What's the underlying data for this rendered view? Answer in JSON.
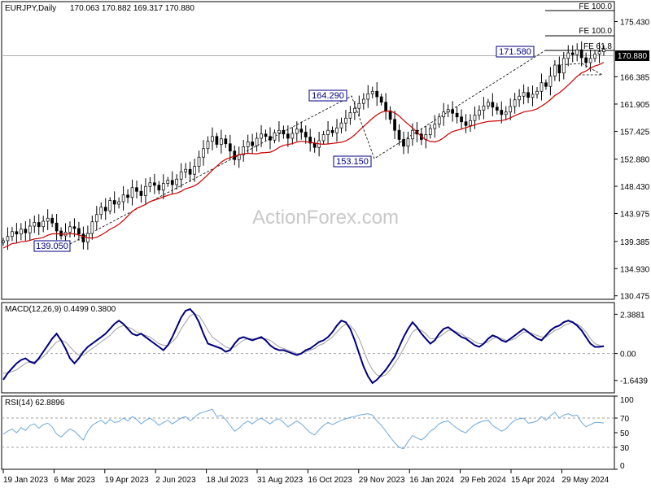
{
  "header": {
    "symbol": "EURJPY,Daily",
    "ohlc": "170.063 170.882 169.317 170.880"
  },
  "watermark": "ActionForex.com",
  "current_price_label": "170.880",
  "annotations": {
    "low_1": "139.050",
    "high_1": "164.290",
    "low_2": "153.150",
    "high_2": "171.580",
    "fe_top": "FE 100.0",
    "fe_mid": "FE 100.0",
    "fe_618": "FE 61.8"
  },
  "colors": {
    "candle": "#000000",
    "sma": "#cc0000",
    "macd": "#000080",
    "signal": "#a0a0a0",
    "rsi": "#6fa8dc",
    "projection": "#000000",
    "price_tag_bg": "#000000"
  },
  "chart_data": [
    {
      "type": "candlestick",
      "name": "price",
      "y_ticks": [
        "175.430",
        "170.880",
        "166.385",
        "161.905",
        "157.425",
        "152.880",
        "148.430",
        "143.975",
        "139.385",
        "134.930",
        "130.475"
      ],
      "ylim": [
        129.9,
        178.7
      ],
      "x_ticks": [
        "19 Jan 2023",
        "6 Mar 2023",
        "19 Apr 2023",
        "2 Jun 2023",
        "18 Jul 2023",
        "31 Aug 2023",
        "16 Oct 2023",
        "29 Nov 2023",
        "16 Jan 2024",
        "29 Feb 2024",
        "15 Apr 2024",
        "29 May 2024"
      ],
      "close": [
        139.5,
        140.2,
        141.0,
        140.6,
        141.4,
        140.8,
        141.9,
        142.5,
        141.8,
        142.7,
        143.2,
        142.4,
        141.1,
        140.3,
        140.9,
        141.8,
        141.5,
        140.6,
        139.3,
        140.7,
        142.6,
        143.8,
        145.0,
        144.4,
        146.1,
        145.5,
        145.9,
        147.0,
        146.6,
        148.2,
        147.6,
        146.9,
        148.4,
        149.0,
        148.6,
        147.8,
        148.9,
        149.4,
        148.7,
        149.6,
        150.8,
        151.2,
        150.4,
        151.7,
        153.2,
        154.6,
        155.8,
        156.6,
        155.3,
        156.2,
        155.4,
        154.2,
        152.8,
        153.6,
        154.9,
        155.7,
        155.1,
        156.3,
        157.0,
        156.6,
        156.0,
        157.2,
        157.6,
        157.0,
        156.3,
        157.1,
        157.8,
        157.3,
        156.5,
        155.5,
        154.8,
        155.9,
        156.9,
        157.6,
        157.2,
        158.0,
        158.8,
        159.6,
        160.5,
        161.2,
        162.0,
        162.7,
        163.6,
        164.0,
        163.1,
        162.2,
        160.8,
        159.4,
        157.6,
        156.1,
        155.0,
        156.2,
        157.6,
        157.0,
        156.1,
        156.9,
        157.9,
        158.6,
        159.8,
        160.6,
        161.0,
        160.4,
        159.8,
        159.0,
        158.4,
        159.2,
        160.1,
        160.9,
        161.6,
        162.2,
        161.4,
        160.9,
        160.2,
        160.6,
        161.5,
        162.6,
        163.2,
        163.8,
        163.0,
        163.5,
        164.0,
        165.4,
        164.8,
        166.5,
        168.3,
        167.0,
        169.4,
        170.3,
        170.0,
        170.8,
        169.5,
        168.7,
        169.4,
        170.1,
        170.5,
        170.88
      ]
    },
    {
      "type": "line",
      "name": "MACD(12,26,9) 0.4499 0.3800",
      "y_ticks": [
        "2.3881",
        "0.00",
        "-1.6439"
      ],
      "ylim": [
        -2.4,
        3.1
      ],
      "series": [
        {
          "values": [
            -1.6,
            -1.2,
            -0.9,
            -0.6,
            -0.4,
            -0.3,
            -0.5,
            -0.6,
            -0.3,
            0.1,
            0.5,
            0.9,
            1.2,
            0.8,
            0.3,
            -0.3,
            -0.6,
            -0.3,
            0.1,
            0.4,
            0.6,
            0.8,
            1.0,
            1.2,
            1.5,
            1.8,
            2.0,
            1.8,
            1.5,
            1.2,
            1.1,
            1.2,
            1.0,
            0.8,
            0.6,
            0.4,
            0.2,
            0.5,
            1.0,
            1.6,
            2.2,
            2.6,
            2.7,
            2.4,
            1.9,
            1.2,
            0.6,
            0.5,
            0.4,
            0.3,
            0.1,
            0.2,
            0.6,
            0.9,
            1.0,
            0.9,
            0.8,
            0.9,
            1.0,
            0.8,
            0.5,
            0.3,
            0.2,
            0.2,
            0.1,
            0.0,
            -0.1,
            0.0,
            0.2,
            0.3,
            0.5,
            0.7,
            0.8,
            1.0,
            1.3,
            1.7,
            2.0,
            1.9,
            1.5,
            0.8,
            0.0,
            -0.8,
            -1.4,
            -1.8,
            -1.6,
            -1.3,
            -1.0,
            -0.6,
            -0.2,
            0.4,
            1.0,
            1.5,
            1.9,
            1.6,
            1.2,
            0.9,
            0.6,
            0.8,
            1.2,
            1.5,
            1.6,
            1.4,
            1.2,
            1.0,
            0.9,
            0.7,
            0.5,
            0.4,
            0.6,
            0.9,
            1.1,
            1.0,
            0.8,
            0.7,
            0.9,
            1.1,
            1.3,
            1.5,
            1.3,
            1.1,
            0.9,
            0.8,
            1.1,
            1.4,
            1.6,
            1.7,
            1.9,
            2.0,
            1.9,
            1.7,
            1.4,
            1.0,
            0.6,
            0.4,
            0.4,
            0.45
          ]
        },
        {
          "values": [
            -1.2,
            -1.2,
            -1.1,
            -1.0,
            -0.8,
            -0.6,
            -0.5,
            -0.5,
            -0.4,
            -0.2,
            0.1,
            0.4,
            0.7,
            0.8,
            0.7,
            0.4,
            0.1,
            -0.1,
            -0.1,
            0.1,
            0.3,
            0.5,
            0.7,
            0.9,
            1.1,
            1.4,
            1.6,
            1.7,
            1.6,
            1.5,
            1.3,
            1.2,
            1.1,
            1.0,
            0.8,
            0.6,
            0.5,
            0.5,
            0.7,
            1.0,
            1.5,
            1.9,
            2.3,
            2.4,
            2.3,
            1.9,
            1.4,
            1.0,
            0.8,
            0.6,
            0.4,
            0.3,
            0.4,
            0.6,
            0.8,
            0.9,
            0.9,
            0.9,
            0.9,
            0.9,
            0.8,
            0.6,
            0.4,
            0.3,
            0.2,
            0.1,
            0.0,
            0.0,
            0.1,
            0.2,
            0.3,
            0.5,
            0.6,
            0.8,
            1.0,
            1.3,
            1.6,
            1.8,
            1.7,
            1.4,
            0.9,
            0.2,
            -0.5,
            -1.0,
            -1.3,
            -1.4,
            -1.3,
            -1.0,
            -0.6,
            -0.2,
            0.3,
            0.8,
            1.3,
            1.5,
            1.4,
            1.2,
            0.9,
            0.9,
            1.0,
            1.2,
            1.4,
            1.4,
            1.3,
            1.2,
            1.0,
            0.9,
            0.7,
            0.6,
            0.6,
            0.7,
            0.9,
            1.0,
            0.9,
            0.8,
            0.8,
            0.9,
            1.1,
            1.3,
            1.3,
            1.2,
            1.1,
            1.0,
            1.0,
            1.2,
            1.4,
            1.5,
            1.7,
            1.8,
            1.9,
            1.8,
            1.6,
            1.3,
            0.9,
            0.6,
            0.5,
            0.38
          ]
        }
      ]
    },
    {
      "type": "line",
      "name": "RSI(14) 62.8896",
      "y_ticks": [
        "100",
        "70",
        "50",
        "30",
        "0"
      ],
      "ylim": [
        0,
        100
      ],
      "series": [
        {
          "values": [
            48,
            52,
            55,
            50,
            57,
            53,
            60,
            62,
            56,
            61,
            63,
            58,
            48,
            44,
            50,
            55,
            52,
            46,
            40,
            52,
            60,
            64,
            67,
            62,
            68,
            64,
            65,
            70,
            66,
            72,
            68,
            62,
            67,
            70,
            66,
            60,
            64,
            67,
            62,
            66,
            70,
            72,
            66,
            71,
            76,
            78,
            80,
            82,
            72,
            74,
            68,
            60,
            52,
            56,
            62,
            66,
            62,
            67,
            70,
            66,
            62,
            67,
            69,
            64,
            58,
            62,
            66,
            62,
            56,
            50,
            47,
            54,
            60,
            64,
            61,
            64,
            67,
            69,
            71,
            72,
            74,
            75,
            76,
            74,
            66,
            60,
            52,
            44,
            36,
            30,
            28,
            38,
            46,
            43,
            40,
            45,
            52,
            56,
            62,
            65,
            66,
            61,
            56,
            52,
            50,
            56,
            61,
            64,
            66,
            67,
            60,
            56,
            52,
            55,
            62,
            67,
            69,
            70,
            63,
            64,
            66,
            72,
            67,
            73,
            78,
            70,
            74,
            76,
            73,
            74,
            64,
            58,
            61,
            64,
            64,
            63
          ]
        }
      ]
    }
  ]
}
